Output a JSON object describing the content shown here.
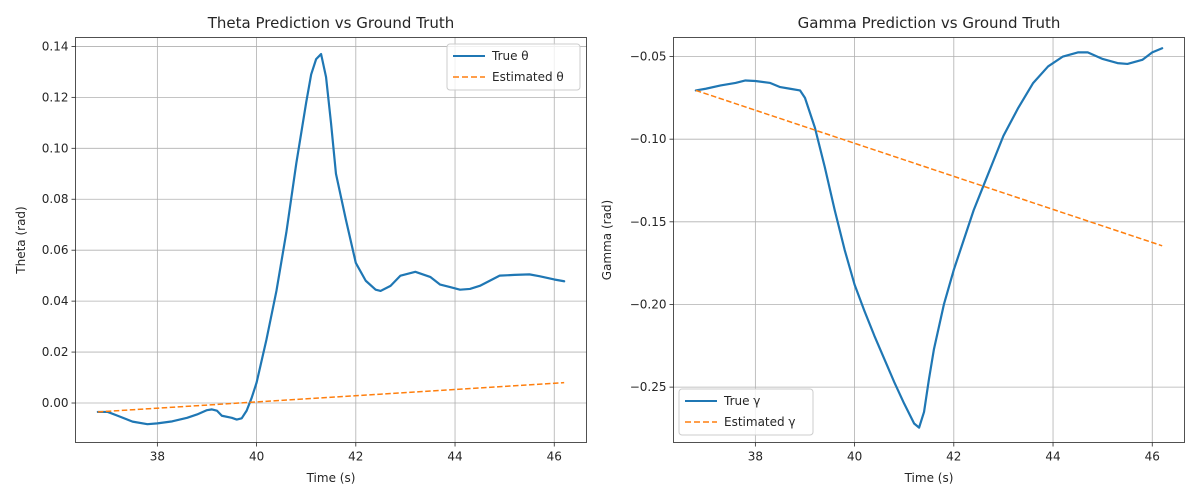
{
  "chart_data": [
    {
      "type": "line",
      "title": "Theta Prediction vs Ground Truth",
      "xlabel": "Time (s)",
      "ylabel": "Theta (rad)",
      "xlim": [
        36.35,
        46.65
      ],
      "ylim": [
        -0.0155,
        0.1435
      ],
      "xticks": [
        38,
        40,
        42,
        44,
        46
      ],
      "yticks": [
        0.0,
        0.02,
        0.04,
        0.06,
        0.08,
        0.1,
        0.12,
        0.14
      ],
      "ytick_labels": [
        "0.00",
        "0.02",
        "0.04",
        "0.06",
        "0.08",
        "0.10",
        "0.12",
        "0.14"
      ],
      "grid": true,
      "legend_position": "top-right",
      "series": [
        {
          "name": "True θ",
          "color": "#1f77b4",
          "style": "solid",
          "points": [
            [
              36.8,
              -0.0035
            ],
            [
              37.0,
              -0.0035
            ],
            [
              37.2,
              -0.005
            ],
            [
              37.5,
              -0.0073
            ],
            [
              37.8,
              -0.0083
            ],
            [
              38.0,
              -0.008
            ],
            [
              38.3,
              -0.0072
            ],
            [
              38.6,
              -0.0058
            ],
            [
              38.8,
              -0.0045
            ],
            [
              39.0,
              -0.0028
            ],
            [
              39.1,
              -0.0025
            ],
            [
              39.2,
              -0.003
            ],
            [
              39.3,
              -0.005
            ],
            [
              39.5,
              -0.0058
            ],
            [
              39.6,
              -0.0065
            ],
            [
              39.7,
              -0.006
            ],
            [
              39.8,
              -0.003
            ],
            [
              39.9,
              0.002
            ],
            [
              40.0,
              0.008
            ],
            [
              40.2,
              0.025
            ],
            [
              40.4,
              0.044
            ],
            [
              40.6,
              0.067
            ],
            [
              40.8,
              0.094
            ],
            [
              41.0,
              0.118
            ],
            [
              41.1,
              0.129
            ],
            [
              41.2,
              0.135
            ],
            [
              41.3,
              0.137
            ],
            [
              41.4,
              0.128
            ],
            [
              41.5,
              0.11
            ],
            [
              41.6,
              0.09
            ],
            [
              41.8,
              0.072
            ],
            [
              42.0,
              0.055
            ],
            [
              42.2,
              0.048
            ],
            [
              42.4,
              0.0445
            ],
            [
              42.5,
              0.044
            ],
            [
              42.7,
              0.046
            ],
            [
              42.9,
              0.05
            ],
            [
              43.2,
              0.0515
            ],
            [
              43.5,
              0.0495
            ],
            [
              43.7,
              0.0465
            ],
            [
              43.9,
              0.0455
            ],
            [
              44.1,
              0.0445
            ],
            [
              44.3,
              0.0448
            ],
            [
              44.5,
              0.046
            ],
            [
              44.7,
              0.048
            ],
            [
              44.9,
              0.05
            ],
            [
              45.2,
              0.0503
            ],
            [
              45.5,
              0.0505
            ],
            [
              45.7,
              0.0498
            ],
            [
              46.0,
              0.0485
            ],
            [
              46.2,
              0.0478
            ]
          ]
        },
        {
          "name": "Estimated θ",
          "color": "#ff7f0e",
          "style": "dashed",
          "points": [
            [
              36.8,
              -0.0035
            ],
            [
              46.2,
              0.008
            ]
          ]
        }
      ]
    },
    {
      "type": "line",
      "title": "Gamma Prediction vs Ground Truth",
      "xlabel": "Time (s)",
      "ylabel": "Gamma (rad)",
      "xlim": [
        36.35,
        46.65
      ],
      "ylim": [
        -0.2835,
        -0.0385
      ],
      "xticks": [
        38,
        40,
        42,
        44,
        46
      ],
      "yticks": [
        -0.25,
        -0.2,
        -0.15,
        -0.1,
        -0.05
      ],
      "ytick_labels": [
        "−0.25",
        "−0.20",
        "−0.15",
        "−0.10",
        "−0.05"
      ],
      "grid": true,
      "legend_position": "bottom-left",
      "series": [
        {
          "name": "True γ",
          "color": "#1f77b4",
          "style": "solid",
          "points": [
            [
              36.8,
              -0.0705
            ],
            [
              37.0,
              -0.0695
            ],
            [
              37.3,
              -0.0675
            ],
            [
              37.6,
              -0.066
            ],
            [
              37.8,
              -0.0645
            ],
            [
              38.0,
              -0.0648
            ],
            [
              38.3,
              -0.066
            ],
            [
              38.5,
              -0.0685
            ],
            [
              38.7,
              -0.0695
            ],
            [
              38.9,
              -0.0705
            ],
            [
              39.0,
              -0.075
            ],
            [
              39.2,
              -0.093
            ],
            [
              39.4,
              -0.117
            ],
            [
              39.6,
              -0.143
            ],
            [
              39.8,
              -0.167
            ],
            [
              40.0,
              -0.188
            ],
            [
              40.2,
              -0.204
            ],
            [
              40.4,
              -0.219
            ],
            [
              40.6,
              -0.233
            ],
            [
              40.8,
              -0.247
            ],
            [
              41.0,
              -0.26
            ],
            [
              41.2,
              -0.272
            ],
            [
              41.3,
              -0.2745
            ],
            [
              41.4,
              -0.265
            ],
            [
              41.5,
              -0.245
            ],
            [
              41.6,
              -0.227
            ],
            [
              41.8,
              -0.2
            ],
            [
              42.0,
              -0.179
            ],
            [
              42.2,
              -0.161
            ],
            [
              42.4,
              -0.143
            ],
            [
              42.6,
              -0.128
            ],
            [
              42.8,
              -0.113
            ],
            [
              43.0,
              -0.098
            ],
            [
              43.3,
              -0.081
            ],
            [
              43.6,
              -0.066
            ],
            [
              43.9,
              -0.056
            ],
            [
              44.2,
              -0.05
            ],
            [
              44.5,
              -0.0475
            ],
            [
              44.7,
              -0.0475
            ],
            [
              45.0,
              -0.0515
            ],
            [
              45.3,
              -0.054
            ],
            [
              45.5,
              -0.0545
            ],
            [
              45.8,
              -0.052
            ],
            [
              46.0,
              -0.0475
            ],
            [
              46.2,
              -0.045
            ]
          ]
        },
        {
          "name": "Estimated γ",
          "color": "#ff7f0e",
          "style": "dashed",
          "points": [
            [
              36.8,
              -0.0705
            ],
            [
              46.2,
              -0.1645
            ]
          ]
        }
      ]
    }
  ]
}
